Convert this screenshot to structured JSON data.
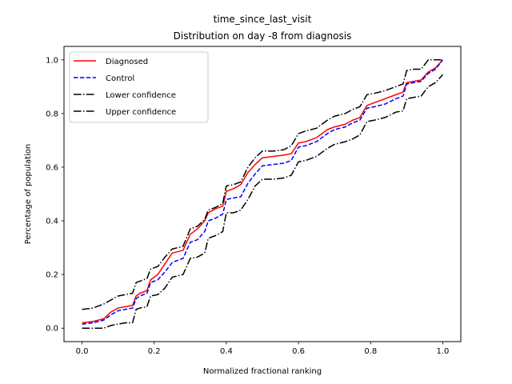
{
  "chart_data": {
    "type": "line",
    "title": "time_since_last_visit",
    "subtitle": "Distribution on day -8 from diagnosis",
    "xlabel": "Normalized fractional ranking",
    "ylabel": "Percentage of population",
    "xlim": [
      -0.05,
      1.05
    ],
    "ylim": [
      -0.05,
      1.05
    ],
    "xticks": [
      "0.0",
      "0.2",
      "0.4",
      "0.6",
      "0.8",
      "1.0"
    ],
    "yticks": [
      "0.0",
      "0.2",
      "0.4",
      "0.6",
      "0.8",
      "1.0"
    ],
    "grid": false,
    "legend_position": "top-left",
    "series": [
      {
        "name": "Diagnosed",
        "color": "#ff0000",
        "dash": "solid",
        "points": [
          [
            0.0,
            0.02
          ],
          [
            0.03,
            0.025
          ],
          [
            0.06,
            0.035
          ],
          [
            0.08,
            0.06
          ],
          [
            0.1,
            0.075
          ],
          [
            0.12,
            0.08
          ],
          [
            0.14,
            0.085
          ],
          [
            0.15,
            0.12
          ],
          [
            0.16,
            0.13
          ],
          [
            0.18,
            0.14
          ],
          [
            0.19,
            0.18
          ],
          [
            0.21,
            0.2
          ],
          [
            0.23,
            0.24
          ],
          [
            0.25,
            0.28
          ],
          [
            0.28,
            0.29
          ],
          [
            0.3,
            0.35
          ],
          [
            0.32,
            0.37
          ],
          [
            0.34,
            0.4
          ],
          [
            0.35,
            0.43
          ],
          [
            0.37,
            0.445
          ],
          [
            0.39,
            0.455
          ],
          [
            0.4,
            0.51
          ],
          [
            0.42,
            0.52
          ],
          [
            0.44,
            0.535
          ],
          [
            0.46,
            0.58
          ],
          [
            0.48,
            0.61
          ],
          [
            0.5,
            0.635
          ],
          [
            0.53,
            0.64
          ],
          [
            0.56,
            0.645
          ],
          [
            0.58,
            0.65
          ],
          [
            0.6,
            0.69
          ],
          [
            0.62,
            0.695
          ],
          [
            0.65,
            0.71
          ],
          [
            0.68,
            0.74
          ],
          [
            0.7,
            0.75
          ],
          [
            0.73,
            0.76
          ],
          [
            0.75,
            0.775
          ],
          [
            0.77,
            0.785
          ],
          [
            0.79,
            0.83
          ],
          [
            0.81,
            0.84
          ],
          [
            0.84,
            0.855
          ],
          [
            0.87,
            0.87
          ],
          [
            0.89,
            0.88
          ],
          [
            0.9,
            0.915
          ],
          [
            0.92,
            0.92
          ],
          [
            0.94,
            0.925
          ],
          [
            0.96,
            0.955
          ],
          [
            0.98,
            0.97
          ],
          [
            1.0,
            1.0
          ]
        ]
      },
      {
        "name": "Control",
        "color": "#0000ff",
        "dash": "dashed",
        "points": [
          [
            0.0,
            0.015
          ],
          [
            0.03,
            0.02
          ],
          [
            0.06,
            0.03
          ],
          [
            0.08,
            0.05
          ],
          [
            0.1,
            0.065
          ],
          [
            0.12,
            0.07
          ],
          [
            0.14,
            0.075
          ],
          [
            0.15,
            0.11
          ],
          [
            0.16,
            0.12
          ],
          [
            0.18,
            0.13
          ],
          [
            0.19,
            0.17
          ],
          [
            0.21,
            0.18
          ],
          [
            0.23,
            0.21
          ],
          [
            0.25,
            0.245
          ],
          [
            0.28,
            0.26
          ],
          [
            0.3,
            0.32
          ],
          [
            0.32,
            0.33
          ],
          [
            0.34,
            0.36
          ],
          [
            0.35,
            0.4
          ],
          [
            0.37,
            0.41
          ],
          [
            0.39,
            0.425
          ],
          [
            0.4,
            0.48
          ],
          [
            0.42,
            0.485
          ],
          [
            0.44,
            0.49
          ],
          [
            0.46,
            0.54
          ],
          [
            0.48,
            0.575
          ],
          [
            0.5,
            0.605
          ],
          [
            0.53,
            0.61
          ],
          [
            0.56,
            0.615
          ],
          [
            0.58,
            0.625
          ],
          [
            0.6,
            0.675
          ],
          [
            0.62,
            0.68
          ],
          [
            0.65,
            0.695
          ],
          [
            0.68,
            0.725
          ],
          [
            0.7,
            0.74
          ],
          [
            0.73,
            0.75
          ],
          [
            0.75,
            0.765
          ],
          [
            0.77,
            0.775
          ],
          [
            0.79,
            0.82
          ],
          [
            0.81,
            0.825
          ],
          [
            0.84,
            0.835
          ],
          [
            0.87,
            0.855
          ],
          [
            0.89,
            0.865
          ],
          [
            0.9,
            0.91
          ],
          [
            0.92,
            0.915
          ],
          [
            0.94,
            0.92
          ],
          [
            0.96,
            0.95
          ],
          [
            0.98,
            0.965
          ],
          [
            1.0,
            1.0
          ]
        ]
      },
      {
        "name": "Lower confidence",
        "color": "#000000",
        "dash": "dashdot",
        "points": [
          [
            0.0,
            0.0
          ],
          [
            0.03,
            0.0
          ],
          [
            0.06,
            0.0
          ],
          [
            0.08,
            0.01
          ],
          [
            0.1,
            0.015
          ],
          [
            0.12,
            0.02
          ],
          [
            0.14,
            0.02
          ],
          [
            0.15,
            0.07
          ],
          [
            0.16,
            0.075
          ],
          [
            0.18,
            0.08
          ],
          [
            0.19,
            0.12
          ],
          [
            0.21,
            0.125
          ],
          [
            0.23,
            0.15
          ],
          [
            0.25,
            0.19
          ],
          [
            0.28,
            0.2
          ],
          [
            0.3,
            0.26
          ],
          [
            0.32,
            0.265
          ],
          [
            0.34,
            0.28
          ],
          [
            0.35,
            0.335
          ],
          [
            0.37,
            0.345
          ],
          [
            0.39,
            0.36
          ],
          [
            0.4,
            0.43
          ],
          [
            0.42,
            0.43
          ],
          [
            0.44,
            0.44
          ],
          [
            0.46,
            0.48
          ],
          [
            0.48,
            0.53
          ],
          [
            0.5,
            0.555
          ],
          [
            0.53,
            0.555
          ],
          [
            0.56,
            0.56
          ],
          [
            0.58,
            0.57
          ],
          [
            0.6,
            0.62
          ],
          [
            0.62,
            0.625
          ],
          [
            0.65,
            0.64
          ],
          [
            0.68,
            0.67
          ],
          [
            0.7,
            0.685
          ],
          [
            0.73,
            0.695
          ],
          [
            0.75,
            0.705
          ],
          [
            0.77,
            0.72
          ],
          [
            0.79,
            0.77
          ],
          [
            0.81,
            0.775
          ],
          [
            0.84,
            0.785
          ],
          [
            0.87,
            0.805
          ],
          [
            0.89,
            0.81
          ],
          [
            0.9,
            0.855
          ],
          [
            0.92,
            0.86
          ],
          [
            0.94,
            0.865
          ],
          [
            0.96,
            0.9
          ],
          [
            0.98,
            0.915
          ],
          [
            1.0,
            0.945
          ]
        ]
      },
      {
        "name": "Upper confidence",
        "color": "#000000",
        "dash": "dashdot",
        "points": [
          [
            0.0,
            0.07
          ],
          [
            0.03,
            0.075
          ],
          [
            0.06,
            0.09
          ],
          [
            0.08,
            0.105
          ],
          [
            0.1,
            0.12
          ],
          [
            0.12,
            0.125
          ],
          [
            0.14,
            0.13
          ],
          [
            0.15,
            0.17
          ],
          [
            0.16,
            0.175
          ],
          [
            0.18,
            0.185
          ],
          [
            0.19,
            0.22
          ],
          [
            0.21,
            0.23
          ],
          [
            0.23,
            0.265
          ],
          [
            0.25,
            0.295
          ],
          [
            0.28,
            0.305
          ],
          [
            0.3,
            0.37
          ],
          [
            0.32,
            0.38
          ],
          [
            0.34,
            0.405
          ],
          [
            0.35,
            0.44
          ],
          [
            0.37,
            0.45
          ],
          [
            0.39,
            0.465
          ],
          [
            0.4,
            0.53
          ],
          [
            0.42,
            0.535
          ],
          [
            0.44,
            0.545
          ],
          [
            0.46,
            0.6
          ],
          [
            0.48,
            0.635
          ],
          [
            0.5,
            0.66
          ],
          [
            0.53,
            0.66
          ],
          [
            0.56,
            0.665
          ],
          [
            0.58,
            0.68
          ],
          [
            0.6,
            0.725
          ],
          [
            0.62,
            0.735
          ],
          [
            0.65,
            0.745
          ],
          [
            0.68,
            0.775
          ],
          [
            0.7,
            0.79
          ],
          [
            0.73,
            0.8
          ],
          [
            0.75,
            0.815
          ],
          [
            0.77,
            0.825
          ],
          [
            0.79,
            0.87
          ],
          [
            0.81,
            0.875
          ],
          [
            0.84,
            0.885
          ],
          [
            0.87,
            0.9
          ],
          [
            0.89,
            0.91
          ],
          [
            0.9,
            0.96
          ],
          [
            0.92,
            0.965
          ],
          [
            0.94,
            0.965
          ],
          [
            0.96,
            1.0
          ],
          [
            0.98,
            1.0
          ],
          [
            1.0,
            1.0
          ]
        ]
      }
    ]
  }
}
